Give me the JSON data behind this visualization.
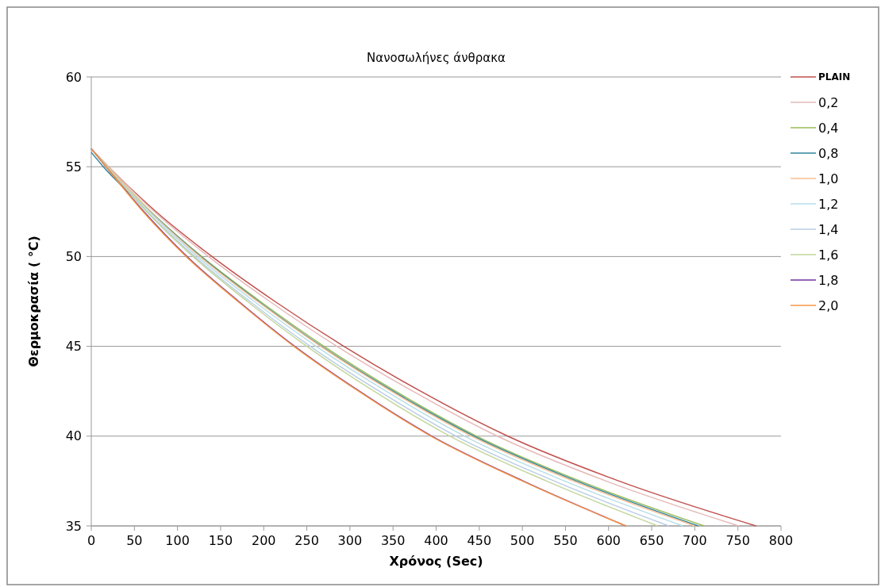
{
  "chart_data": {
    "type": "line",
    "title": "Νανοσωλήνες άνθρακα",
    "xlabel": "Χρόνος (Sec)",
    "ylabel": "Θερμοκρασία ( °C)",
    "xlim": [
      0,
      800
    ],
    "ylim": [
      35,
      60
    ],
    "xticks": [
      0,
      50,
      100,
      150,
      200,
      250,
      300,
      350,
      400,
      450,
      500,
      550,
      600,
      650,
      700,
      750,
      800
    ],
    "yticks": [
      35,
      40,
      45,
      50,
      55,
      60
    ],
    "grid": "y",
    "legend": "right",
    "marker": "none",
    "line_style": "solid",
    "series": [
      {
        "name": "PLAIN",
        "color": "#c0504d",
        "x": [
          0,
          20,
          75,
          140,
          213,
          293,
          382,
          483,
          612,
          771
        ],
        "values": [
          56,
          55,
          52.5,
          50,
          47.5,
          45,
          42.5,
          40,
          37.5,
          35
        ]
      },
      {
        "name": "0,2",
        "color": "#e6b9b8",
        "x": [
          0,
          20,
          73,
          136,
          207,
          285,
          373,
          471,
          597,
          751
        ],
        "values": [
          56,
          55,
          52.5,
          50,
          47.5,
          45,
          42.5,
          40,
          37.5,
          35
        ]
      },
      {
        "name": "0,4",
        "color": "#9bbb59",
        "x": [
          0,
          19,
          69,
          128,
          196,
          270,
          353,
          447,
          567,
          711
        ],
        "values": [
          56,
          55,
          52.5,
          50,
          47.5,
          45,
          42.5,
          40,
          37.5,
          35
        ]
      },
      {
        "name": "0,8",
        "color": "#31859c",
        "x": [
          0,
          14,
          68,
          127,
          194,
          267,
          350,
          444,
          563,
          704
        ],
        "values": [
          55.8,
          55,
          52.5,
          50,
          47.5,
          45,
          42.5,
          40,
          37.5,
          35
        ]
      },
      {
        "name": "1,0",
        "color": "#fabf8f",
        "x": [
          0,
          19,
          68,
          126,
          193,
          266,
          348,
          441,
          559,
          700
        ],
        "values": [
          56,
          55,
          52.5,
          50,
          47.5,
          45,
          42.5,
          40,
          37.5,
          35
        ]
      },
      {
        "name": "1,2",
        "color": "#b7dee8",
        "x": [
          0,
          18,
          67,
          123,
          189,
          261,
          342,
          433,
          549,
          686
        ],
        "values": [
          56,
          55,
          52.5,
          50,
          47.5,
          45,
          42.5,
          40,
          37.5,
          35
        ]
      },
      {
        "name": "1,4",
        "color": "#b9cde5",
        "x": [
          0,
          18,
          65,
          120,
          184,
          254,
          334,
          423,
          537,
          670
        ],
        "values": [
          56,
          55,
          52.5,
          50,
          47.5,
          45,
          42.5,
          40,
          37.5,
          35
        ]
      },
      {
        "name": "1,6",
        "color": "#c3d69b",
        "x": [
          0,
          18,
          64,
          118,
          181,
          250,
          328,
          416,
          528,
          657
        ],
        "values": [
          56,
          55,
          52.5,
          50,
          47.5,
          45,
          42.5,
          40,
          37.5,
          35
        ]
      },
      {
        "name": "1,8",
        "color": "#7030a0",
        "x": [
          0,
          17,
          61,
          111,
          171,
          236,
          311,
          395,
          501,
          620
        ],
        "values": [
          56,
          55,
          52.5,
          50,
          47.5,
          45,
          42.5,
          40,
          37.5,
          35
        ]
      },
      {
        "name": "2,0",
        "color": "#f79646",
        "x": [
          0,
          17,
          60,
          110,
          170,
          235,
          310,
          394,
          500,
          620
        ],
        "values": [
          56,
          55,
          52.5,
          50,
          47.5,
          45,
          42.5,
          40,
          37.5,
          35
        ]
      }
    ]
  }
}
